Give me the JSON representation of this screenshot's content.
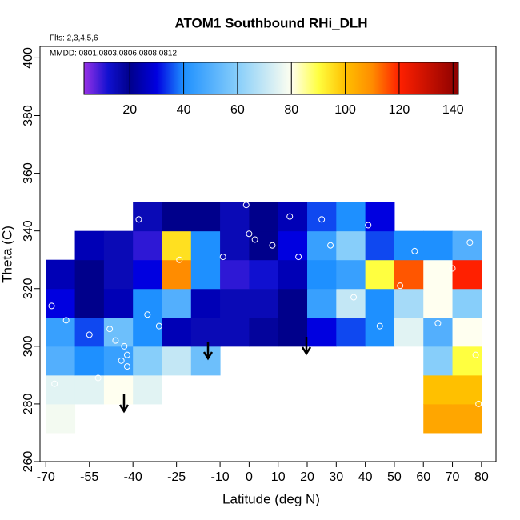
{
  "chart_data": {
    "type": "heatmap",
    "title": "ATOM1 Southbound RHi_DLH",
    "subtitle": "Flts: 2,3,4,5,6",
    "annotation": "MMDD: 0801,0803,0806,0808,0812",
    "x_label": "Latitude (deg N)",
    "y_label": "Theta (C)",
    "xlim": [
      -72,
      85
    ],
    "ylim": [
      260,
      404
    ],
    "xticks": [
      -70,
      -55,
      -40,
      -25,
      -10,
      0,
      10,
      20,
      30,
      40,
      50,
      60,
      70,
      80
    ],
    "yticks": [
      260,
      280,
      300,
      320,
      340,
      360,
      380,
      400
    ],
    "x_bins": [
      -70,
      -60,
      -50,
      -40,
      -30,
      -20,
      -10,
      0,
      10,
      20,
      30,
      40,
      50,
      60,
      70,
      80
    ],
    "y_bins": [
      270,
      280,
      290,
      300,
      310,
      320,
      330,
      340,
      350
    ],
    "z": [
      [
        78,
        null,
        null,
        null,
        null,
        null,
        null,
        null,
        null,
        null,
        null,
        null,
        null,
        105,
        105
      ],
      [
        75,
        75,
        80,
        75,
        null,
        null,
        null,
        null,
        null,
        null,
        null,
        null,
        null,
        100,
        100
      ],
      [
        50,
        40,
        45,
        60,
        70,
        55,
        null,
        null,
        null,
        null,
        null,
        null,
        null,
        60,
        90
      ],
      [
        45,
        35,
        55,
        40,
        25,
        15,
        15,
        18,
        20,
        30,
        35,
        40,
        75,
        50,
        80
      ],
      [
        30,
        20,
        25,
        40,
        50,
        25,
        15,
        15,
        20,
        45,
        70,
        40,
        65,
        80,
        60
      ],
      [
        25,
        20,
        15,
        30,
        110,
        40,
        10,
        12,
        25,
        40,
        45,
        90,
        115,
        80,
        120
      ],
      [
        null,
        25,
        15,
        10,
        95,
        40,
        15,
        20,
        30,
        45,
        60,
        35,
        40,
        40,
        50
      ],
      [
        null,
        null,
        null,
        15,
        20,
        20,
        15,
        20,
        25,
        35,
        40,
        30,
        null,
        null,
        null
      ]
    ],
    "zlim": [
      3,
      142
    ],
    "zticks": [
      20,
      40,
      60,
      80,
      100,
      120,
      140
    ],
    "colorscale": [
      [
        3,
        "#9932e6"
      ],
      [
        12,
        "#1010d0"
      ],
      [
        20,
        "#00008b"
      ],
      [
        30,
        "#0000e0"
      ],
      [
        40,
        "#1e90ff"
      ],
      [
        60,
        "#87cefa"
      ],
      [
        80,
        "#fffff0"
      ],
      [
        90,
        "#ffff40"
      ],
      [
        100,
        "#ffc000"
      ],
      [
        110,
        "#ff8c00"
      ],
      [
        120,
        "#ff2000"
      ],
      [
        142,
        "#8b0000"
      ]
    ],
    "points": {
      "x": [
        -68,
        -67,
        -63,
        -55,
        -52,
        -48,
        -46,
        -44,
        -43,
        -42,
        -42,
        -38,
        -35,
        -31,
        -24,
        -9,
        -1,
        0,
        2,
        8,
        14,
        17,
        25,
        28,
        36,
        41,
        45,
        52,
        57,
        65,
        70,
        76,
        78,
        79
      ],
      "y": [
        314,
        287,
        309,
        304,
        289,
        306,
        302,
        295,
        300,
        297,
        293,
        344,
        311,
        307,
        330,
        331,
        349,
        339,
        337,
        335,
        345,
        331,
        344,
        335,
        317,
        342,
        307,
        321,
        333,
        308,
        327,
        336,
        297,
        280
      ]
    }
  }
}
